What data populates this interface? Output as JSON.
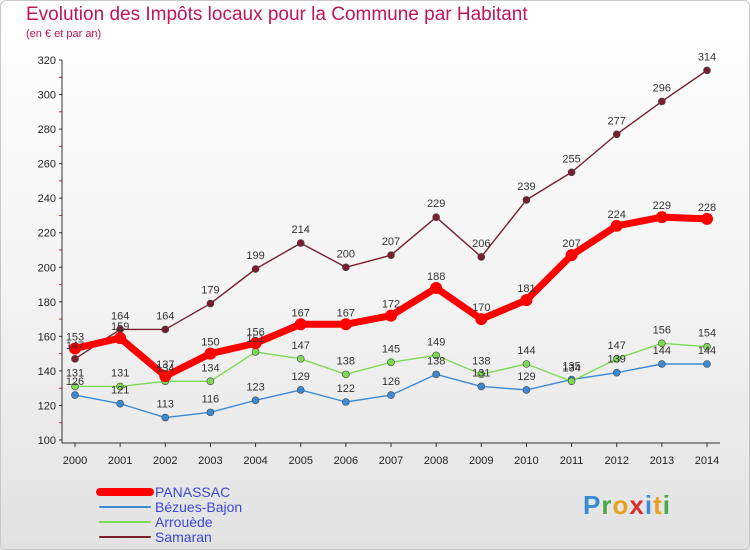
{
  "title": "Evolution des Impôts locaux pour la Commune par Habitant",
  "subtitle": "(en € et par an)",
  "logo": "Proxiti",
  "chart_data": {
    "type": "line",
    "title": "Evolution des Impôts locaux pour la Commune par Habitant",
    "subtitle": "(en € et par an)",
    "xlabel": "",
    "ylabel": "",
    "ylim": [
      100,
      320
    ],
    "y_ticks": [
      100,
      120,
      140,
      160,
      180,
      200,
      220,
      240,
      260,
      280,
      300,
      320
    ],
    "grid": false,
    "legend_position": "bottom-left",
    "categories": [
      "2000",
      "2001",
      "2002",
      "2003",
      "2004",
      "2005",
      "2006",
      "2007",
      "2008",
      "2009",
      "2010",
      "2011",
      "2012",
      "2013",
      "2014"
    ],
    "series": [
      {
        "name": "PANASSAC",
        "color": "#ff0000",
        "values": [
          153,
          159,
          137,
          150,
          156,
          167,
          167,
          172,
          188,
          170,
          181,
          207,
          224,
          229,
          228
        ]
      },
      {
        "name": "Bézues-Bajon",
        "color": "#3c8ad4",
        "values": [
          126,
          121,
          113,
          116,
          123,
          129,
          122,
          126,
          138,
          131,
          129,
          135,
          139,
          144,
          144
        ]
      },
      {
        "name": "Arrouède",
        "color": "#7ed957",
        "values": [
          131,
          131,
          134,
          134,
          151,
          147,
          138,
          145,
          149,
          138,
          144,
          134,
          147,
          156,
          154
        ]
      },
      {
        "name": "Samaran",
        "color": "#7a1f2e",
        "values": [
          147,
          164,
          164,
          179,
          199,
          214,
          200,
          207,
          229,
          206,
          239,
          255,
          277,
          296,
          314
        ]
      }
    ]
  }
}
